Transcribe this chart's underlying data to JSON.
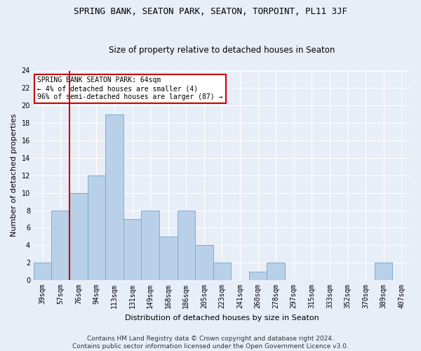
{
  "title1": "SPRING BANK, SEATON PARK, SEATON, TORPOINT, PL11 3JF",
  "title2": "Size of property relative to detached houses in Seaton",
  "xlabel": "Distribution of detached houses by size in Seaton",
  "ylabel": "Number of detached properties",
  "categories": [
    "39sqm",
    "57sqm",
    "76sqm",
    "94sqm",
    "113sqm",
    "131sqm",
    "149sqm",
    "168sqm",
    "186sqm",
    "205sqm",
    "223sqm",
    "241sqm",
    "260sqm",
    "278sqm",
    "297sqm",
    "315sqm",
    "333sqm",
    "352sqm",
    "370sqm",
    "389sqm",
    "407sqm"
  ],
  "values": [
    2,
    8,
    10,
    12,
    19,
    7,
    8,
    5,
    8,
    4,
    2,
    0,
    1,
    2,
    0,
    0,
    0,
    0,
    0,
    2,
    0
  ],
  "bar_color": "#b8d0e8",
  "bar_edge_color": "#7bafd4",
  "vline_color": "#cc0000",
  "vline_x": 1.5,
  "annotation_title": "SPRING BANK SEATON PARK: 64sqm",
  "annotation_line1": "← 4% of detached houses are smaller (4)",
  "annotation_line2": "96% of semi-detached houses are larger (87) →",
  "ylim": [
    0,
    24
  ],
  "yticks": [
    0,
    2,
    4,
    6,
    8,
    10,
    12,
    14,
    16,
    18,
    20,
    22,
    24
  ],
  "footer1": "Contains HM Land Registry data © Crown copyright and database right 2024.",
  "footer2": "Contains public sector information licensed under the Open Government Licence v3.0.",
  "bg_color": "#e8eef8",
  "plot_bg_color": "#e8eef8",
  "grid_color": "#ffffff",
  "title1_fontsize": 9,
  "title2_fontsize": 8.5,
  "xlabel_fontsize": 8,
  "ylabel_fontsize": 8,
  "tick_fontsize": 7,
  "ann_fontsize": 7,
  "footer_fontsize": 6.5
}
